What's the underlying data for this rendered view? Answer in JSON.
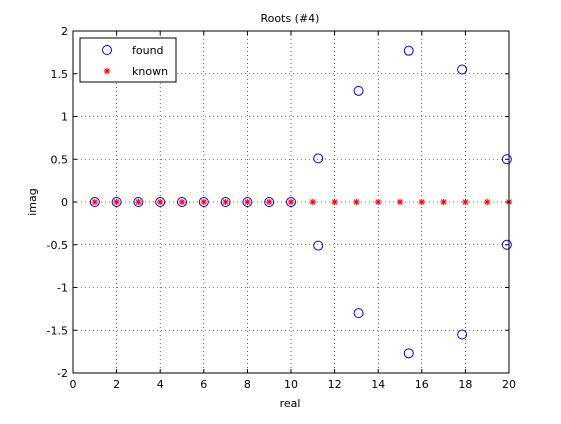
{
  "chart_data": {
    "type": "scatter",
    "title": "Roots (#4)",
    "xlabel": "real",
    "ylabel": "imag",
    "xlim": [
      0,
      20
    ],
    "ylim": [
      -2,
      2
    ],
    "xticks": [
      0,
      2,
      4,
      6,
      8,
      10,
      12,
      14,
      16,
      18,
      20
    ],
    "yticks": [
      -2,
      -1.5,
      -1,
      -0.5,
      0,
      0.5,
      1,
      1.5,
      2
    ],
    "grid": true,
    "legend_position": "top-left",
    "series": [
      {
        "name": "found",
        "marker": "circle",
        "color": "#0000ff",
        "x": [
          1,
          2,
          3,
          4,
          5,
          6,
          7,
          8,
          9,
          10,
          11.25,
          11.25,
          13.1,
          13.1,
          15.4,
          15.4,
          17.85,
          17.85,
          19.9,
          19.9
        ],
        "y": [
          0,
          0,
          0,
          0,
          0,
          0,
          0,
          0,
          0,
          0,
          0.51,
          -0.51,
          1.3,
          -1.3,
          1.77,
          -1.77,
          1.55,
          -1.55,
          0.5,
          -0.5
        ]
      },
      {
        "name": "known",
        "marker": "star",
        "color": "#ff0000",
        "x": [
          1,
          2,
          3,
          4,
          5,
          6,
          7,
          8,
          9,
          10,
          11,
          12,
          13,
          14,
          15,
          16,
          17,
          18,
          19,
          20
        ],
        "y": [
          0,
          0,
          0,
          0,
          0,
          0,
          0,
          0,
          0,
          0,
          0,
          0,
          0,
          0,
          0,
          0,
          0,
          0,
          0,
          0
        ]
      }
    ]
  }
}
